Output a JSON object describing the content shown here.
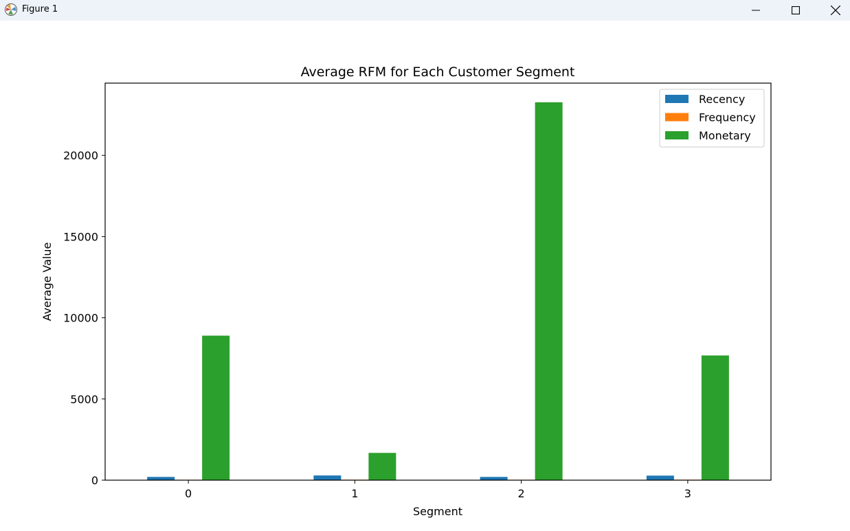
{
  "window": {
    "title": "Figure 1"
  },
  "chart_data": {
    "type": "bar",
    "title": "Average RFM for Each Customer Segment",
    "xlabel": "Segment",
    "ylabel": "Average Value",
    "categories": [
      "0",
      "1",
      "2",
      "3"
    ],
    "series": [
      {
        "name": "Recency",
        "color": "#1f77b4",
        "values": [
          200,
          290,
          200,
          280
        ]
      },
      {
        "name": "Frequency",
        "color": "#ff7f0e",
        "values": [
          25,
          30,
          25,
          30
        ]
      },
      {
        "name": "Monetary",
        "color": "#2ca02c",
        "values": [
          8900,
          1680,
          23270,
          7680
        ]
      }
    ],
    "ylim": [
      0,
      24450
    ],
    "yticks": [
      0,
      5000,
      10000,
      15000,
      20000
    ],
    "grid": false,
    "legend_position": "upper right"
  }
}
